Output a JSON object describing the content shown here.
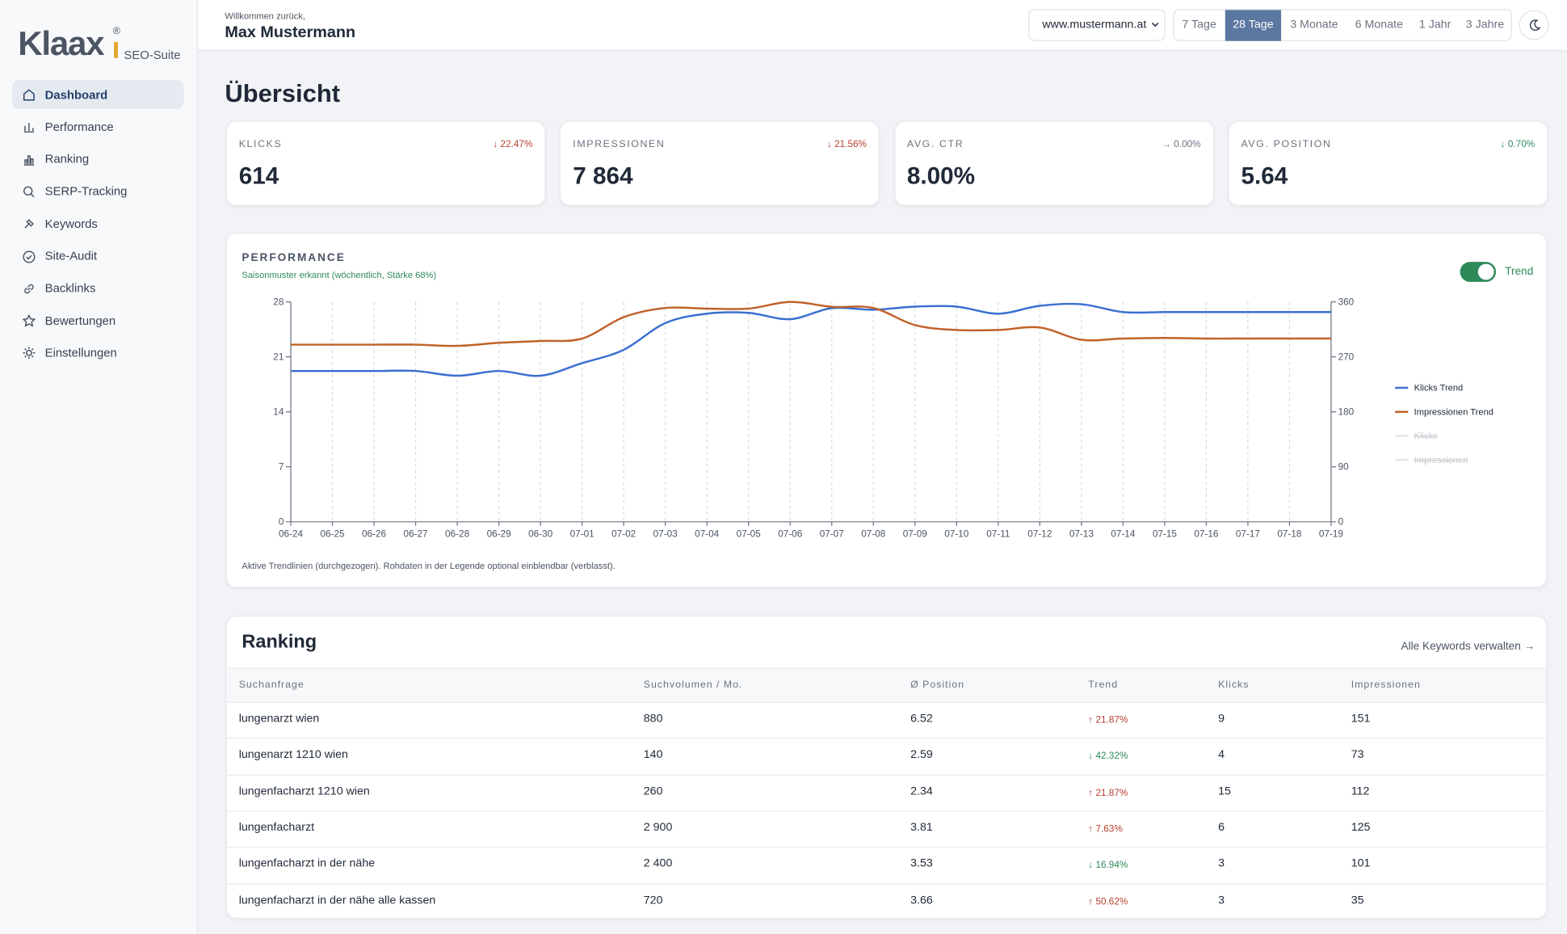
{
  "sidebar": {
    "logo": "Klaax",
    "logo_mark": "®",
    "suite": "SEO-Suite",
    "nav": [
      "Dashboard",
      "Performance",
      "Ranking",
      "SERP-Tracking",
      "Keywords",
      "Site-Audit",
      "Backlinks",
      "Bewertungen",
      "Einstellungen"
    ],
    "active": 0
  },
  "header": {
    "greeting": "Willkommen zurück,",
    "user": "Max Mustermann",
    "site": "www.mustermann.at",
    "ranges": [
      "7 Tage",
      "28 Tage",
      "3 Monate",
      "6 Monate",
      "1 Jahr",
      "3 Jahre"
    ],
    "active_range": 1
  },
  "page_title": "Übersicht",
  "kpis": [
    {
      "label": "KLICKS",
      "value": "614",
      "change": "↓ 22.47%",
      "color": "#b4412f"
    },
    {
      "label": "IMPRESSIONEN",
      "value": "7 864",
      "change": "↓ 21.56%",
      "color": "#b4412f"
    },
    {
      "label": "AVG. CTR",
      "value": "8.00%",
      "change": "→ 0.00%",
      "color": "#6b7280"
    },
    {
      "label": "AVG. POSITION",
      "value": "5.64",
      "change": "↓ 0.70%",
      "color": "#2f8a5a"
    }
  ],
  "performance": {
    "title": "PERFORMANCE",
    "subtitle": "Saisonmuster erkannt (wöchentlich, Stärke 68%)",
    "toggle": "Trend",
    "note": "Aktive Trendlinien (durchgezogen). Rohdaten in der Legende optional einblendbar (verblasst)."
  },
  "chart_data": {
    "type": "line",
    "categories": [
      "06-24",
      "06-25",
      "06-26",
      "06-27",
      "06-28",
      "06-29",
      "06-30",
      "07-01",
      "07-02",
      "07-03",
      "07-04",
      "07-05",
      "07-06",
      "07-07",
      "07-08",
      "07-09",
      "07-10",
      "07-11",
      "07-12",
      "07-13",
      "07-14",
      "07-15",
      "07-16",
      "07-17",
      "07-18",
      "07-19"
    ],
    "series": [
      {
        "name": "Klicks Trend",
        "color": "#3b6fd1",
        "axis": "y",
        "values": [
          19.2,
          19.2,
          19.2,
          19.2,
          18.6,
          19.2,
          18.6,
          20.2,
          21.9,
          25.3,
          26.5,
          26.6,
          25.8,
          27.2,
          27.0,
          27.4,
          27.4,
          26.5,
          27.5,
          27.7,
          26.7,
          26.7,
          26.7,
          26.7,
          26.7,
          26.7
        ]
      },
      {
        "name": "Impressionen Trend",
        "color": "#c0622a",
        "axis": "y2",
        "values": [
          290,
          290,
          290,
          290,
          288,
          293,
          296,
          300,
          335,
          350,
          349,
          349,
          360,
          352,
          350,
          322,
          314,
          314,
          318,
          298,
          300,
          301,
          300,
          300,
          300,
          300
        ]
      }
    ],
    "hidden_series": [
      "Klicks",
      "Impressionen"
    ],
    "ylim": [
      0,
      28
    ],
    "yticks": [
      0,
      7,
      14,
      21,
      28
    ],
    "y2lim": [
      0,
      360
    ],
    "y2ticks": [
      0,
      90,
      180,
      270,
      360
    ],
    "grid": true,
    "legend": "right"
  },
  "ranking": {
    "title": "Ranking",
    "link": "Alle Keywords verwalten →",
    "columns": [
      "Suchanfrage",
      "Suchvolumen / Mo.",
      "Ø Position",
      "Trend",
      "Klicks",
      "Impressionen"
    ],
    "rows": [
      [
        "lungenarzt wien",
        "880",
        "6.52",
        "↑ 21.87%",
        "9",
        "151"
      ],
      [
        "lungenarzt 1210 wien",
        "140",
        "2.59",
        "↓ 42.32%",
        "4",
        "73"
      ],
      [
        "lungenfacharzt 1210 wien",
        "260",
        "2.34",
        "↑ 21.87%",
        "15",
        "112"
      ],
      [
        "lungenfacharzt",
        "2 900",
        "3.81",
        "↑ 7.63%",
        "6",
        "125"
      ],
      [
        "lungenfacharzt in der nähe",
        "2 400",
        "3.53",
        "↓ 16.94%",
        "3",
        "101"
      ],
      [
        "lungenfacharzt in der nähe alle kassen",
        "720",
        "3.66",
        "↑ 50.62%",
        "3",
        "35"
      ]
    ],
    "trend_colors": [
      "#b4412f",
      "#2f8a5a",
      "#b4412f",
      "#b4412f",
      "#2f8a5a",
      "#b4412f"
    ]
  }
}
